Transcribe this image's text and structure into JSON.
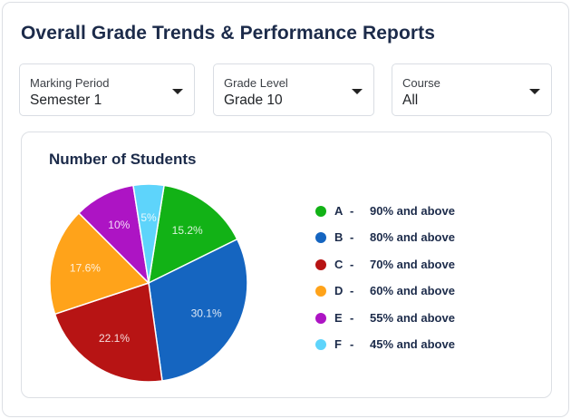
{
  "header": {
    "title": "Overall Grade Trends & Performance Reports"
  },
  "filters": [
    {
      "label": "Marking Period",
      "value": "Semester 1"
    },
    {
      "label": "Grade Level",
      "value": "Grade 10"
    },
    {
      "label": "Course",
      "value": "All"
    }
  ],
  "chart_data": {
    "type": "pie",
    "title": "Number of Students",
    "slices": [
      {
        "grade": "A",
        "description": "90% and above",
        "percent": 15.2,
        "label": "15.2%",
        "color": "#12b216"
      },
      {
        "grade": "B",
        "description": "80% and above",
        "percent": 30.1,
        "label": "30.1%",
        "color": "#1565c0"
      },
      {
        "grade": "C",
        "description": "70% and above",
        "percent": 22.1,
        "label": "22.1%",
        "color": "#b71414"
      },
      {
        "grade": "D",
        "description": "60% and above",
        "percent": 17.6,
        "label": "17.6%",
        "color": "#ffa31a"
      },
      {
        "grade": "E",
        "description": "55% and above",
        "percent": 10,
        "label": "10%",
        "color": "#ad14c4"
      },
      {
        "grade": "F",
        "description": "45% and above",
        "percent": 5,
        "label": "5%",
        "color": "#5ed4fb"
      }
    ],
    "legend_position": "right",
    "legend_separator": "-"
  }
}
